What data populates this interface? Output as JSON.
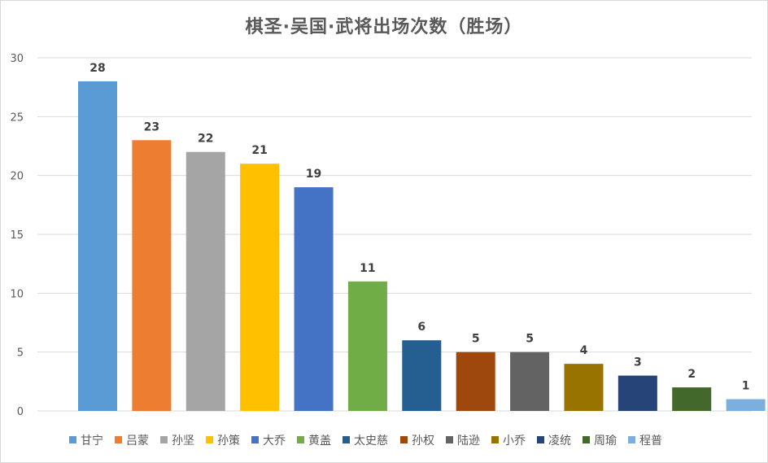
{
  "chart_data": {
    "type": "bar",
    "title": "棋圣·吴国·武将出场次数（胜场）",
    "xlabel": "",
    "ylabel": "",
    "ylim": [
      0,
      30
    ],
    "yticks": [
      0,
      5,
      10,
      15,
      20,
      25,
      30
    ],
    "grid": true,
    "legend_position": "bottom",
    "categories": [
      "甘宁",
      "吕蒙",
      "孙坚",
      "孙策",
      "大乔",
      "黄盖",
      "太史慈",
      "孙权",
      "陆逊",
      "小乔",
      "凌统",
      "周瑜",
      "程普"
    ],
    "values": [
      28,
      23,
      22,
      21,
      19,
      11,
      6,
      5,
      5,
      4,
      3,
      2,
      1
    ],
    "colors": [
      "#5b9bd5",
      "#ed7d31",
      "#a5a5a5",
      "#ffc000",
      "#4472c4",
      "#70ad47",
      "#255e91",
      "#9e480e",
      "#636363",
      "#997300",
      "#264478",
      "#43682b",
      "#7cafdd"
    ]
  }
}
